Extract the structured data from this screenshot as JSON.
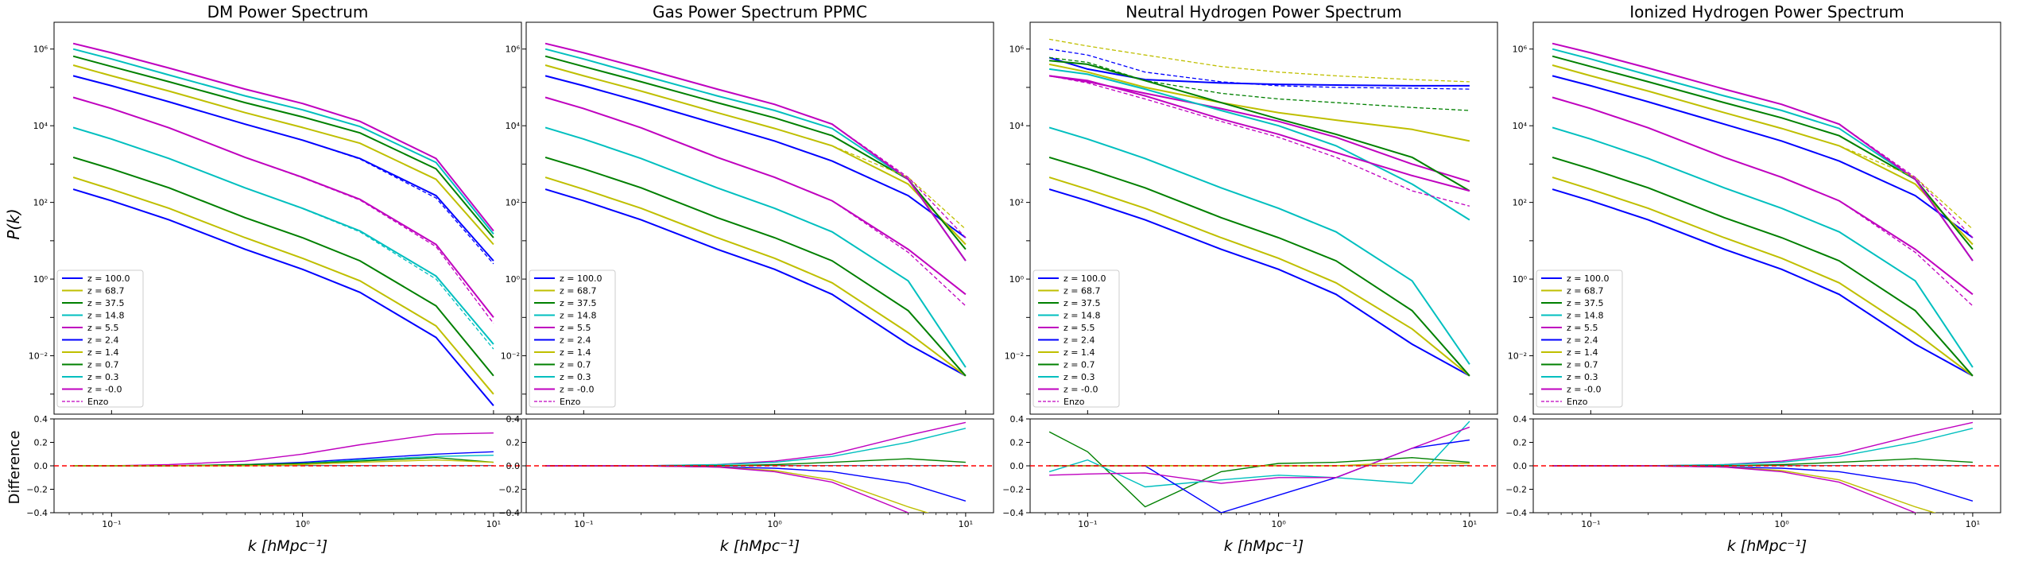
{
  "figure": {
    "ylabel_top": "P(k)",
    "ylabel_bottom": "Difference",
    "xlabel": "k [hMpc⁻¹]"
  },
  "colors": {
    "series": [
      "#0000ff",
      "#bfbf00",
      "#008000",
      "#00bfbf",
      "#bf00bf",
      "#0000ff",
      "#bfbf00",
      "#008000",
      "#00bfbf",
      "#bf00bf"
    ],
    "zero_line": "#ff0000"
  },
  "legend": {
    "entries": [
      "z = 100.0",
      "z = 68.7",
      "z = 37.5",
      "z = 14.8",
      "z = 5.5",
      "z = 2.4",
      "z = 1.4",
      "z = 0.7",
      "z = 0.3",
      "z = -0.0"
    ],
    "enzo_label": "Enzo",
    "placement": "lower-left"
  },
  "ticks": {
    "top_y": [
      "10⁻²",
      "10⁰",
      "10²",
      "10⁴",
      "10⁶"
    ],
    "bottom_y": [
      "0.4",
      "0.2",
      "0.0",
      "−0.2",
      "−0.4"
    ],
    "x": [
      "10⁻¹",
      "10⁰",
      "10¹"
    ]
  },
  "chart_data": [
    {
      "type": "line",
      "title": "DM Power Spectrum",
      "x_scale": "log",
      "y_scale": "log",
      "xlim": [
        0.05,
        14
      ],
      "ylim": [
        0.0003,
        5000000
      ],
      "diff_ylim": [
        -0.4,
        0.4
      ],
      "x": [
        0.063,
        0.1,
        0.2,
        0.5,
        1,
        2,
        5,
        10
      ],
      "series": [
        {
          "name": "z = 100.0",
          "values": [
            220,
            110,
            35,
            6,
            1.8,
            0.45,
            0.03,
            0.0005
          ]
        },
        {
          "name": "z = 68.7",
          "values": [
            450,
            220,
            70,
            12,
            3.5,
            0.9,
            0.06,
            0.001
          ]
        },
        {
          "name": "z = 37.5",
          "values": [
            1500,
            750,
            240,
            40,
            12,
            3,
            0.2,
            0.003
          ]
        },
        {
          "name": "z = 14.8",
          "values": [
            9000,
            4500,
            1400,
            240,
            70,
            18,
            1.2,
            0.02
          ]
        },
        {
          "name": "z = 5.5",
          "values": [
            55000,
            28000,
            8800,
            1500,
            450,
            120,
            8,
            0.1
          ]
        },
        {
          "name": "z = 2.4",
          "values": [
            200000,
            110000,
            42000,
            11000,
            4200,
            1400,
            150,
            3
          ]
        },
        {
          "name": "z = 1.4",
          "values": [
            380000,
            200000,
            80000,
            22000,
            9000,
            3500,
            400,
            8
          ]
        },
        {
          "name": "z = 0.7",
          "values": [
            650000,
            350000,
            140000,
            40000,
            17000,
            6500,
            750,
            12
          ]
        },
        {
          "name": "z = 0.3",
          "values": [
            1000000,
            550000,
            210000,
            60000,
            26000,
            9500,
            1100,
            15
          ]
        },
        {
          "name": "z = -0.0",
          "values": [
            1400000,
            800000,
            320000,
            90000,
            38000,
            13000,
            1400,
            18
          ]
        }
      ],
      "enzo": [
        {
          "series": "z = 2.4",
          "values": [
            200000,
            110000,
            42000,
            11000,
            4200,
            1350,
            130,
            2.5
          ]
        },
        {
          "series": "z = 5.5",
          "values": [
            55000,
            28000,
            8800,
            1500,
            440,
            115,
            7,
            0.07
          ]
        },
        {
          "series": "z = 14.8",
          "values": [
            9000,
            4500,
            1400,
            240,
            69,
            17,
            1.0,
            0.015
          ]
        }
      ],
      "difference": [
        {
          "series": "z = -0.0",
          "values": [
            0,
            0,
            0.01,
            0.04,
            0.1,
            0.18,
            0.27,
            0.28
          ]
        },
        {
          "series": "z = 2.4",
          "values": [
            0,
            0,
            0,
            0.01,
            0.03,
            0.06,
            0.1,
            0.12
          ]
        },
        {
          "series": "z = 0.3",
          "values": [
            0,
            0,
            0,
            0.01,
            0.02,
            0.05,
            0.08,
            0.09
          ]
        },
        {
          "series": "z = 0.7",
          "values": [
            0,
            0,
            0,
            0.01,
            0.02,
            0.04,
            0.07,
            0.03
          ]
        },
        {
          "series": "z = 1.4",
          "values": [
            0,
            0,
            0,
            0,
            0.01,
            0.03,
            0.05,
            0.03
          ]
        }
      ]
    },
    {
      "type": "line",
      "title": "Gas Power Spectrum  PPMC",
      "x_scale": "log",
      "y_scale": "log",
      "xlim": [
        0.05,
        14
      ],
      "ylim": [
        0.0003,
        5000000
      ],
      "diff_ylim": [
        -0.4,
        0.4
      ],
      "x": [
        0.063,
        0.1,
        0.2,
        0.5,
        1,
        2,
        5,
        10
      ],
      "series": [
        {
          "name": "z = 100.0",
          "values": [
            220,
            110,
            35,
            6,
            1.8,
            0.4,
            0.02,
            0.003
          ]
        },
        {
          "name": "z = 68.7",
          "values": [
            450,
            220,
            70,
            12,
            3.5,
            0.8,
            0.04,
            0.003
          ]
        },
        {
          "name": "z = 37.5",
          "values": [
            1500,
            750,
            240,
            40,
            12,
            3,
            0.15,
            0.003
          ]
        },
        {
          "name": "z = 14.8",
          "values": [
            9000,
            4500,
            1400,
            240,
            70,
            17,
            0.9,
            0.005
          ]
        },
        {
          "name": "z = 5.5",
          "values": [
            55000,
            28000,
            8800,
            1500,
            450,
            110,
            6,
            0.4
          ]
        },
        {
          "name": "z = 2.4",
          "values": [
            200000,
            110000,
            42000,
            11000,
            4000,
            1200,
            150,
            12
          ]
        },
        {
          "name": "z = 1.4",
          "values": [
            380000,
            200000,
            80000,
            22000,
            8500,
            3000,
            300,
            8
          ]
        },
        {
          "name": "z = 0.7",
          "values": [
            650000,
            350000,
            140000,
            40000,
            16000,
            5500,
            400,
            6
          ]
        },
        {
          "name": "z = 0.3",
          "values": [
            1000000,
            550000,
            210000,
            60000,
            25000,
            8500,
            400,
            3
          ]
        },
        {
          "name": "z = -0.0",
          "values": [
            1400000,
            800000,
            320000,
            90000,
            36000,
            11000,
            400,
            3
          ]
        }
      ],
      "enzo": [
        {
          "series": "z = 1.4",
          "values": [
            380000,
            200000,
            80000,
            22000,
            8500,
            3000,
            450,
            20
          ]
        },
        {
          "series": "z = -0.0",
          "values": [
            1400000,
            800000,
            320000,
            90000,
            36000,
            11000,
            450,
            12
          ]
        },
        {
          "series": "z = 5.5",
          "values": [
            55000,
            28000,
            8800,
            1500,
            450,
            110,
            5,
            0.2
          ]
        }
      ],
      "difference": [
        {
          "series": "z = -0.0",
          "values": [
            0,
            0,
            0,
            0.01,
            0.04,
            0.1,
            0.26,
            0.37
          ]
        },
        {
          "series": "z = 0.3",
          "values": [
            0,
            0,
            0,
            0.01,
            0.03,
            0.08,
            0.2,
            0.32
          ]
        },
        {
          "series": "z = 0.7",
          "values": [
            0,
            0,
            0,
            0,
            0.01,
            0.03,
            0.06,
            0.03
          ]
        },
        {
          "series": "z = 2.4",
          "values": [
            0,
            0,
            0,
            -0.01,
            -0.02,
            -0.05,
            -0.15,
            -0.3
          ]
        },
        {
          "series": "z = 1.4",
          "values": [
            0,
            0,
            0,
            -0.01,
            -0.04,
            -0.12,
            -0.35,
            -0.5
          ]
        },
        {
          "series": "z = 5.5",
          "values": [
            0,
            0,
            0,
            -0.01,
            -0.05,
            -0.14,
            -0.4,
            -0.55
          ]
        }
      ]
    },
    {
      "type": "line",
      "title": "Neutral Hydrogen Power Spectrum",
      "x_scale": "log",
      "y_scale": "log",
      "xlim": [
        0.05,
        14
      ],
      "ylim": [
        0.0003,
        5000000
      ],
      "diff_ylim": [
        -0.4,
        0.4
      ],
      "x": [
        0.063,
        0.1,
        0.2,
        0.5,
        1,
        2,
        5,
        10
      ],
      "series": [
        {
          "name": "z = 100.0",
          "values": [
            220,
            110,
            35,
            6,
            1.8,
            0.4,
            0.02,
            0.003
          ]
        },
        {
          "name": "z = 68.7",
          "values": [
            450,
            220,
            70,
            12,
            3.5,
            0.8,
            0.05,
            0.003
          ]
        },
        {
          "name": "z = 37.5",
          "values": [
            1500,
            750,
            240,
            40,
            12,
            3,
            0.15,
            0.003
          ]
        },
        {
          "name": "z = 14.8",
          "values": [
            9000,
            4500,
            1400,
            240,
            70,
            17,
            0.9,
            0.006
          ]
        },
        {
          "name": "z = 5.5",
          "values": [
            200000,
            140000,
            70000,
            28000,
            13000,
            5000,
            1000,
            350
          ]
        },
        {
          "name": "z = 2.4",
          "values": [
            600000,
            300000,
            160000,
            130000,
            120000,
            115000,
            110000,
            110000
          ]
        },
        {
          "name": "z = 1.4",
          "values": [
            400000,
            250000,
            100000,
            40000,
            22000,
            14000,
            8000,
            4000
          ]
        },
        {
          "name": "z = 0.7",
          "values": [
            500000,
            400000,
            150000,
            40000,
            15000,
            6000,
            1500,
            200
          ]
        },
        {
          "name": "z = 0.3",
          "values": [
            300000,
            220000,
            90000,
            25000,
            10000,
            3000,
            300,
            35
          ]
        },
        {
          "name": "z = -0.0",
          "values": [
            200000,
            150000,
            60000,
            15000,
            6000,
            2000,
            500,
            200
          ]
        }
      ],
      "enzo": [
        {
          "series": "z = 1.4",
          "values": [
            1800000,
            1200000,
            700000,
            350000,
            250000,
            200000,
            160000,
            140000
          ]
        },
        {
          "series": "z = 2.4",
          "values": [
            1000000,
            700000,
            250000,
            140000,
            110000,
            100000,
            95000,
            90000
          ]
        },
        {
          "series": "z = 0.7",
          "values": [
            600000,
            450000,
            150000,
            70000,
            50000,
            40000,
            30000,
            25000
          ]
        },
        {
          "series": "z = -0.0",
          "values": [
            200000,
            130000,
            50000,
            13000,
            5000,
            1500,
            200,
            80
          ]
        }
      ],
      "difference": [
        {
          "series": "z = 0.7",
          "values": [
            0.29,
            0.12,
            -0.35,
            -0.05,
            0.02,
            0.03,
            0.07,
            0.03
          ]
        },
        {
          "series": "z = 0.3",
          "values": [
            -0.05,
            0.05,
            -0.18,
            -0.12,
            -0.08,
            -0.1,
            -0.15,
            0.38
          ]
        },
        {
          "series": "z = 2.4",
          "values": [
            0,
            0,
            0,
            -0.4,
            -0.25,
            -0.1,
            0.15,
            0.22
          ]
        },
        {
          "series": "z = -0.0",
          "values": [
            -0.08,
            -0.07,
            -0.06,
            -0.15,
            -0.1,
            -0.1,
            0.15,
            0.33
          ]
        },
        {
          "series": "z = 1.4",
          "values": [
            0,
            0,
            0,
            0,
            0,
            0,
            0.03,
            0.02
          ]
        }
      ]
    },
    {
      "type": "line",
      "title": "Ionized Hydrogen Power Spectrum",
      "x_scale": "log",
      "y_scale": "log",
      "xlim": [
        0.05,
        14
      ],
      "ylim": [
        0.0003,
        5000000
      ],
      "diff_ylim": [
        -0.4,
        0.4
      ],
      "x": [
        0.063,
        0.1,
        0.2,
        0.5,
        1,
        2,
        5,
        10
      ],
      "series": [
        {
          "name": "z = 100.0",
          "values": [
            220,
            110,
            35,
            6,
            1.8,
            0.4,
            0.02,
            0.003
          ]
        },
        {
          "name": "z = 68.7",
          "values": [
            450,
            220,
            70,
            12,
            3.5,
            0.8,
            0.04,
            0.003
          ]
        },
        {
          "name": "z = 37.5",
          "values": [
            1500,
            750,
            240,
            40,
            12,
            3,
            0.15,
            0.003
          ]
        },
        {
          "name": "z = 14.8",
          "values": [
            9000,
            4500,
            1400,
            240,
            70,
            17,
            0.9,
            0.005
          ]
        },
        {
          "name": "z = 5.5",
          "values": [
            55000,
            28000,
            8800,
            1500,
            450,
            110,
            6,
            0.4
          ]
        },
        {
          "name": "z = 2.4",
          "values": [
            200000,
            110000,
            42000,
            11000,
            4000,
            1200,
            150,
            12
          ]
        },
        {
          "name": "z = 1.4",
          "values": [
            380000,
            200000,
            80000,
            22000,
            8500,
            3000,
            300,
            8
          ]
        },
        {
          "name": "z = 0.7",
          "values": [
            650000,
            350000,
            140000,
            40000,
            16000,
            5500,
            400,
            6
          ]
        },
        {
          "name": "z = 0.3",
          "values": [
            1000000,
            550000,
            210000,
            60000,
            25000,
            8500,
            400,
            3
          ]
        },
        {
          "name": "z = -0.0",
          "values": [
            1400000,
            800000,
            320000,
            90000,
            36000,
            11000,
            400,
            3
          ]
        }
      ],
      "enzo": [
        {
          "series": "z = 1.4",
          "values": [
            380000,
            200000,
            80000,
            22000,
            8500,
            3000,
            450,
            20
          ]
        },
        {
          "series": "z = -0.0",
          "values": [
            1400000,
            800000,
            320000,
            90000,
            36000,
            11000,
            450,
            12
          ]
        },
        {
          "series": "z = 5.5",
          "values": [
            55000,
            28000,
            8800,
            1500,
            450,
            110,
            5,
            0.2
          ]
        }
      ],
      "difference": [
        {
          "series": "z = -0.0",
          "values": [
            0,
            0,
            0,
            0.01,
            0.04,
            0.1,
            0.26,
            0.37
          ]
        },
        {
          "series": "z = 0.3",
          "values": [
            0,
            0,
            0,
            0.01,
            0.03,
            0.08,
            0.2,
            0.32
          ]
        },
        {
          "series": "z = 0.7",
          "values": [
            0,
            0,
            0,
            0,
            0.01,
            0.03,
            0.06,
            0.03
          ]
        },
        {
          "series": "z = 2.4",
          "values": [
            0,
            0,
            0,
            -0.01,
            -0.02,
            -0.05,
            -0.15,
            -0.3
          ]
        },
        {
          "series": "z = 1.4",
          "values": [
            0,
            0,
            0,
            -0.01,
            -0.04,
            -0.12,
            -0.35,
            -0.5
          ]
        },
        {
          "series": "z = 5.5",
          "values": [
            0,
            0,
            0,
            -0.01,
            -0.05,
            -0.14,
            -0.4,
            -0.55
          ]
        }
      ]
    }
  ]
}
